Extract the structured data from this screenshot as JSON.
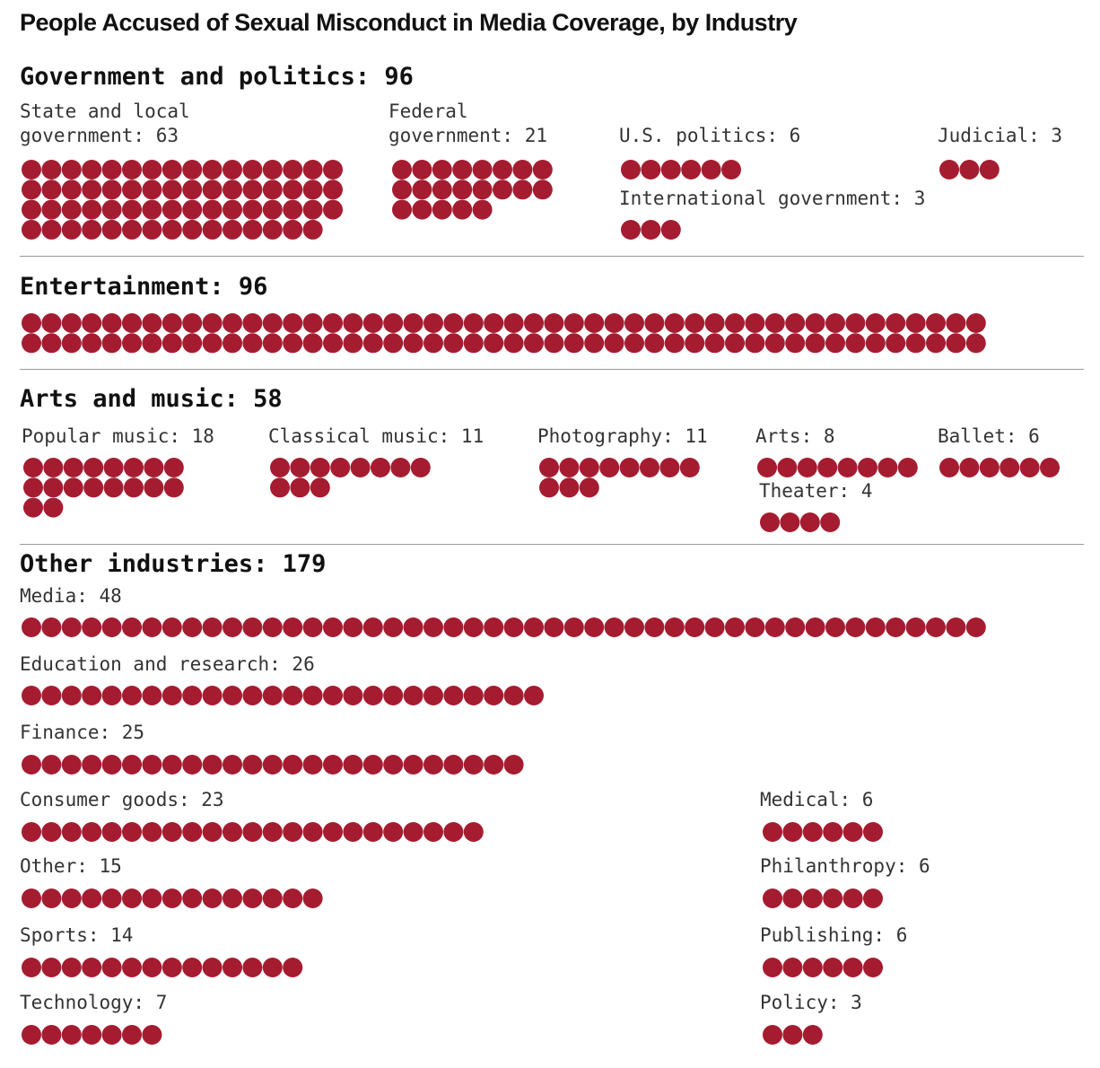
{
  "title": "People Accused of Sexual Misconduct in Media Coverage, by Industry",
  "colors": {
    "dot": "#A51C30",
    "text": "#111111",
    "rule": "#9a9a9a"
  },
  "chart_data": {
    "type": "table",
    "unit_note": "one dot = one person",
    "sections": [
      {
        "heading": "Government and politics: 96",
        "total": 96,
        "groups": [
          {
            "label": "State and local government: 63",
            "name": "State and local government",
            "value": 63
          },
          {
            "label": "Federal government: 21",
            "name": "Federal government",
            "value": 21
          },
          {
            "label": "U.S. politics: 6",
            "name": "U.S. politics",
            "value": 6
          },
          {
            "label": "Judicial: 3",
            "name": "Judicial",
            "value": 3
          },
          {
            "label": "International government: 3",
            "name": "International government",
            "value": 3
          }
        ]
      },
      {
        "heading": "Entertainment: 96",
        "total": 96,
        "groups": [
          {
            "label": "",
            "name": "Entertainment",
            "value": 96
          }
        ]
      },
      {
        "heading": "Arts and music: 58",
        "total": 58,
        "groups": [
          {
            "label": "Popular music: 18",
            "name": "Popular music",
            "value": 18
          },
          {
            "label": "Classical music: 11",
            "name": "Classical music",
            "value": 11
          },
          {
            "label": "Photography: 11",
            "name": "Photography",
            "value": 11
          },
          {
            "label": "Arts: 8",
            "name": "Arts",
            "value": 8
          },
          {
            "label": "Ballet: 6",
            "name": "Ballet",
            "value": 6
          },
          {
            "label": "Theater: 4",
            "name": "Theater",
            "value": 4
          }
        ]
      },
      {
        "heading": "Other industries: 179",
        "total": 179,
        "groups": [
          {
            "label": "Media: 48",
            "name": "Media",
            "value": 48
          },
          {
            "label": "Education and research: 26",
            "name": "Education and research",
            "value": 26
          },
          {
            "label": "Finance: 25",
            "name": "Finance",
            "value": 25
          },
          {
            "label": "Consumer goods: 23",
            "name": "Consumer goods",
            "value": 23
          },
          {
            "label": "Other: 15",
            "name": "Other",
            "value": 15
          },
          {
            "label": "Sports: 14",
            "name": "Sports",
            "value": 14
          },
          {
            "label": "Technology: 7",
            "name": "Technology",
            "value": 7
          },
          {
            "label": "Medical: 6",
            "name": "Medical",
            "value": 6
          },
          {
            "label": "Philanthropy: 6",
            "name": "Philanthropy",
            "value": 6
          },
          {
            "label": "Publishing: 6",
            "name": "Publishing",
            "value": 6
          },
          {
            "label": "Policy: 3",
            "name": "Policy",
            "value": 3
          }
        ]
      }
    ]
  }
}
